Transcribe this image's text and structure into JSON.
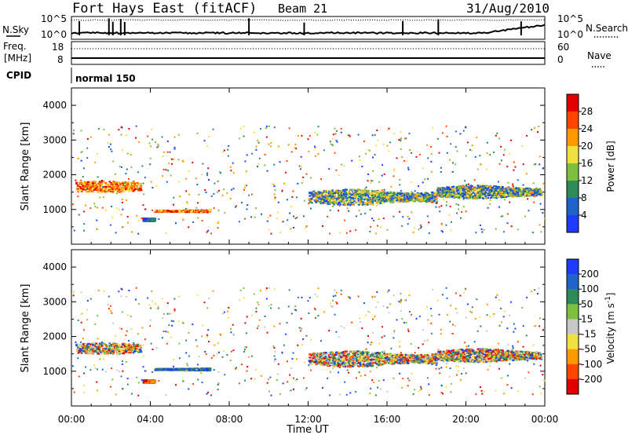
{
  "header": {
    "title": "Fort Hays East (fitACF)",
    "beam": "Beam 21",
    "date": "31/Aug/2010"
  },
  "sky_panel": {
    "left_label": "N.Sky",
    "left_ticks": [
      "10^5",
      "10^0"
    ],
    "right_label": "N.Search",
    "right_ticks": [
      "10^5",
      "10^0"
    ]
  },
  "freq_panel": {
    "left_label_1": "Freq.",
    "left_label_2": "[MHz]",
    "left_ticks": [
      "18",
      "8"
    ],
    "right_label": "Nave",
    "right_ticks": [
      "60",
      "0"
    ]
  },
  "cpid": {
    "label": "CPID",
    "value": "normal 150"
  },
  "x_axis": {
    "label": "Time UT",
    "ticks": [
      "00:00",
      "04:00",
      "08:00",
      "12:00",
      "16:00",
      "20:00",
      "00:00"
    ]
  },
  "colors": {
    "power": [
      "#1e3cff",
      "#1e64c8",
      "#2e8b57",
      "#7fbf3f",
      "#f0e040",
      "#ff9900",
      "#ff4500",
      "#e00000"
    ],
    "velocity": [
      "#e00000",
      "#ff4500",
      "#ff9900",
      "#f0e040",
      "#c8c8c8",
      "#7fbf3f",
      "#2e8b57",
      "#1e64c8",
      "#1e3cff"
    ]
  },
  "chart_data": [
    {
      "type": "heatmap",
      "title": "",
      "ylabel": "Slant Range [km]",
      "xlabel": "",
      "x_range_hours": [
        0,
        24
      ],
      "ylim": [
        0,
        4500
      ],
      "y_ticks": [
        "1000",
        "2000",
        "3000",
        "4000"
      ],
      "colorbar_label": "Power [dB]",
      "colorbar_ticks": [
        "4",
        "8",
        "12",
        "16",
        "20",
        "24",
        "28"
      ],
      "echo_regions": [
        {
          "t_start": 0.2,
          "t_end": 3.5,
          "range_center": 1650,
          "range_width": 250,
          "dominant": "power-high"
        },
        {
          "t_start": 3.6,
          "t_end": 4.2,
          "range_center": 700,
          "range_width": 100,
          "dominant": "power-low"
        },
        {
          "t_start": 4.2,
          "t_end": 7.0,
          "range_center": 950,
          "range_width": 60,
          "dominant": "power-high"
        },
        {
          "t_start": 12.0,
          "t_end": 18.5,
          "range_center": 1350,
          "range_width": 350,
          "dominant": "power-mixed"
        },
        {
          "t_start": 18.5,
          "t_end": 23.8,
          "range_center": 1500,
          "range_width": 300,
          "dominant": "power-mixed"
        }
      ]
    },
    {
      "type": "heatmap",
      "title": "",
      "ylabel": "Slant Range [km]",
      "xlabel": "Time UT",
      "x_range_hours": [
        0,
        24
      ],
      "ylim": [
        0,
        4500
      ],
      "y_ticks": [
        "1000",
        "2000",
        "3000",
        "4000"
      ],
      "colorbar_label": "Velocity [m s^-1]",
      "colorbar_ticks": [
        "200",
        "100",
        "50",
        "15",
        "-15",
        "-50",
        "-100",
        "-200"
      ],
      "echo_regions": [
        {
          "t_start": 0.2,
          "t_end": 3.5,
          "range_center": 1650,
          "range_width": 250,
          "dominant": "velocity-mixed"
        },
        {
          "t_start": 3.6,
          "t_end": 4.2,
          "range_center": 700,
          "range_width": 100,
          "dominant": "velocity-negative"
        },
        {
          "t_start": 4.2,
          "t_end": 7.0,
          "range_center": 1050,
          "range_width": 60,
          "dominant": "velocity-positive"
        },
        {
          "t_start": 12.0,
          "t_end": 18.5,
          "range_center": 1350,
          "range_width": 350,
          "dominant": "velocity-mixed"
        },
        {
          "t_start": 18.5,
          "t_end": 23.8,
          "range_center": 1450,
          "range_width": 300,
          "dominant": "velocity-mixed"
        }
      ]
    }
  ]
}
